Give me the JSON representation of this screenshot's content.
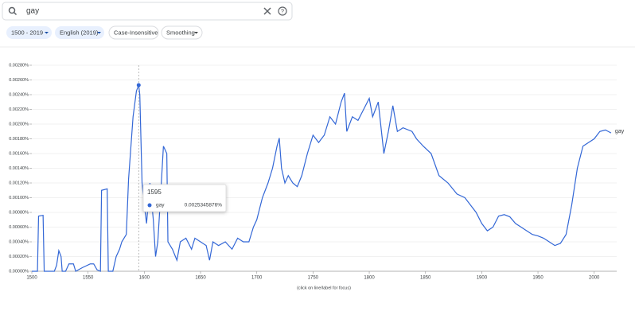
{
  "search": {
    "query": "gay"
  },
  "chips": [
    "1500 - 2019",
    "English (2019)",
    "Case-Insensitive",
    "Smoothing"
  ],
  "chart_data": {
    "type": "line",
    "x": [
      1500,
      1505,
      1506,
      1510,
      1511,
      1520,
      1522,
      1524,
      1526,
      1527,
      1530,
      1533,
      1537,
      1539,
      1545,
      1552,
      1555,
      1558,
      1561,
      1562,
      1567,
      1568,
      1572,
      1575,
      1578,
      1580,
      1584,
      1586,
      1590,
      1593,
      1595,
      1596,
      1598,
      1600,
      1602,
      1605,
      1608,
      1610,
      1612,
      1614,
      1617,
      1620,
      1621,
      1625,
      1629,
      1632,
      1637,
      1642,
      1645,
      1650,
      1655,
      1658,
      1661,
      1666,
      1672,
      1678,
      1683,
      1688,
      1693,
      1697,
      1700,
      1705,
      1710,
      1714,
      1718,
      1720,
      1722,
      1725,
      1728,
      1732,
      1736,
      1740,
      1745,
      1750,
      1755,
      1760,
      1765,
      1770,
      1775,
      1778,
      1780,
      1785,
      1790,
      1795,
      1800,
      1803,
      1808,
      1813,
      1817,
      1821,
      1825,
      1830,
      1838,
      1842,
      1848,
      1855,
      1862,
      1870,
      1878,
      1885,
      1890,
      1895,
      1900,
      1905,
      1910,
      1915,
      1920,
      1925,
      1930,
      1935,
      1940,
      1945,
      1950,
      1955,
      1960,
      1965,
      1970,
      1975,
      1980,
      1985,
      1990,
      1995,
      2000,
      2005,
      2010,
      2015
    ],
    "series": [
      {
        "name": "gay",
        "color": "#3367d6",
        "values": [
          0,
          0,
          0.00075,
          0.00076,
          0,
          0,
          8e-05,
          0.00028,
          0.0002,
          0,
          0,
          0.0001,
          0.0001,
          0,
          5e-05,
          0.0001,
          0.0001,
          2e-05,
          0,
          0.0011,
          0.00112,
          0,
          0,
          0.0002,
          0.0003,
          0.0004,
          0.0005,
          0.00125,
          0.0021,
          0.00245,
          0.00253,
          0.0024,
          0.0012,
          0.0009,
          0.00065,
          0.0012,
          0.0007,
          0.0002,
          0.0004,
          0.0009,
          0.0017,
          0.0016,
          0.0004,
          0.0003,
          0.00015,
          0.0004,
          0.00045,
          0.0003,
          0.00045,
          0.0004,
          0.00035,
          0.00015,
          0.0004,
          0.00035,
          0.0004,
          0.0003,
          0.00045,
          0.0004,
          0.0004,
          0.0006,
          0.0007,
          0.001,
          0.0012,
          0.0014,
          0.0017,
          0.00181,
          0.0014,
          0.0012,
          0.0013,
          0.0012,
          0.00115,
          0.0013,
          0.0016,
          0.00185,
          0.00175,
          0.00185,
          0.0021,
          0.002,
          0.0023,
          0.00242,
          0.0019,
          0.0021,
          0.00205,
          0.0022,
          0.00235,
          0.0021,
          0.0023,
          0.0016,
          0.0019,
          0.00225,
          0.0019,
          0.00195,
          0.0019,
          0.0018,
          0.0017,
          0.0016,
          0.0013,
          0.0012,
          0.00105,
          0.001,
          0.0009,
          0.0008,
          0.00065,
          0.00055,
          0.0006,
          0.00075,
          0.00077,
          0.00074,
          0.00065,
          0.0006,
          0.00055,
          0.0005,
          0.00048,
          0.00045,
          0.0004,
          0.00035,
          0.00038,
          0.0005,
          0.0009,
          0.0014,
          0.0017,
          0.00175,
          0.0018,
          0.0019,
          0.00192,
          0.00188
        ]
      }
    ],
    "xlim": [
      1500,
      2020
    ],
    "xticks": [
      1500,
      1550,
      1600,
      1650,
      1700,
      1750,
      1800,
      1850,
      1900,
      1950,
      2000
    ],
    "ylim": [
      0,
      0.0028
    ],
    "yticks": [
      {
        "value": 0,
        "label": "0.00000%"
      },
      {
        "value": 0.0002,
        "label": "0.00020%"
      },
      {
        "value": 0.0004,
        "label": "0.00040%"
      },
      {
        "value": 0.0006,
        "label": "0.00060%"
      },
      {
        "value": 0.0008,
        "label": "0.00080%"
      },
      {
        "value": 0.001,
        "label": "0.00100%"
      },
      {
        "value": 0.0012,
        "label": "0.00120%"
      },
      {
        "value": 0.0014,
        "label": "0.00140%"
      },
      {
        "value": 0.0016,
        "label": "0.00160%"
      },
      {
        "value": 0.0018,
        "label": "0.00180%"
      },
      {
        "value": 0.002,
        "label": "0.00200%"
      },
      {
        "value": 0.0022,
        "label": "0.00220%"
      },
      {
        "value": 0.0024,
        "label": "0.00240%"
      },
      {
        "value": 0.0026,
        "label": "0.00260%"
      },
      {
        "value": 0.0028,
        "label": "0.00280%"
      }
    ],
    "grid": true,
    "footnote": "(click on line/label for focus)"
  },
  "tooltip": {
    "year": "1595",
    "series": "gay",
    "value": "0.0025345876%"
  }
}
